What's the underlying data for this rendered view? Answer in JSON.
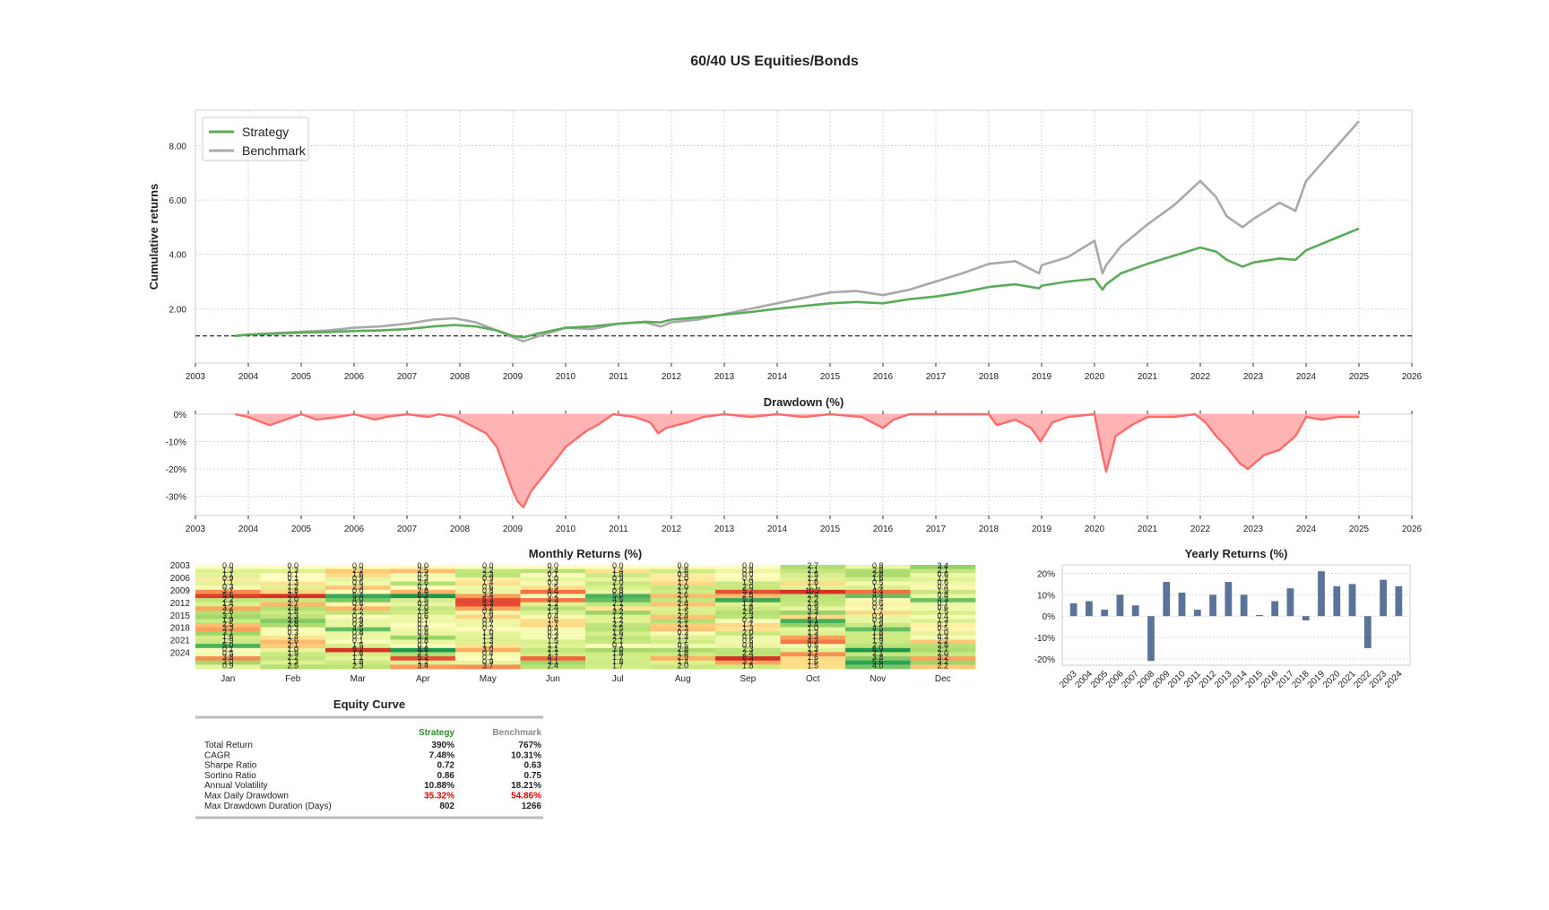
{
  "page_title": "60/40 US Equities/Bonds",
  "colors": {
    "strategy": "#5aab5a",
    "benchmark": "#a9a9a9",
    "drawdown": "#ff6b6b",
    "drawdown_fill": "#ffb3b3",
    "yearly_bar": "#5b7299",
    "red_text": "#e00000",
    "green_text": "#2e8b2e",
    "grid": "#cccccc"
  },
  "chart_data": [
    {
      "id": "cumulative",
      "type": "line",
      "title": "",
      "ylabel": "Cumulative returns",
      "xlabel": "",
      "xlim": [
        2003,
        2026
      ],
      "ylim": [
        0,
        9.3
      ],
      "x_ticks": [
        "2003",
        "2004",
        "2005",
        "2006",
        "2007",
        "2008",
        "2009",
        "2010",
        "2011",
        "2012",
        "2013",
        "2014",
        "2015",
        "2016",
        "2017",
        "2018",
        "2019",
        "2020",
        "2021",
        "2022",
        "2023",
        "2024",
        "2025",
        "2026"
      ],
      "y_ticks": [
        "2.00",
        "4.00",
        "6.00",
        "8.00"
      ],
      "y_tick_values": [
        2,
        4,
        6,
        8
      ],
      "reference_line": 1.0,
      "grid": true,
      "legend_position": "top-left",
      "series": [
        {
          "name": "Strategy",
          "x": [
            2003.75,
            2004.0,
            2004.5,
            2005.0,
            2005.5,
            2006.0,
            2006.5,
            2007.0,
            2007.5,
            2007.9,
            2008.3,
            2008.7,
            2009.0,
            2009.2,
            2009.5,
            2010.0,
            2010.5,
            2011.0,
            2011.5,
            2011.8,
            2012.0,
            2012.5,
            2013.0,
            2013.5,
            2014.0,
            2014.5,
            2015.0,
            2015.5,
            2016.0,
            2016.5,
            2017.0,
            2017.5,
            2018.0,
            2018.5,
            2018.95,
            2019.0,
            2019.5,
            2020.0,
            2020.15,
            2020.22,
            2020.5,
            2021.0,
            2021.5,
            2022.0,
            2022.3,
            2022.5,
            2022.8,
            2023.0,
            2023.5,
            2023.8,
            2024.0,
            2024.5,
            2025.0
          ],
          "y": [
            1.0,
            1.05,
            1.08,
            1.12,
            1.14,
            1.18,
            1.2,
            1.25,
            1.35,
            1.4,
            1.35,
            1.2,
            1.0,
            0.95,
            1.1,
            1.3,
            1.35,
            1.45,
            1.52,
            1.5,
            1.6,
            1.68,
            1.78,
            1.88,
            2.0,
            2.1,
            2.2,
            2.25,
            2.2,
            2.35,
            2.45,
            2.6,
            2.8,
            2.9,
            2.75,
            2.85,
            3.0,
            3.1,
            2.7,
            2.9,
            3.3,
            3.65,
            3.95,
            4.25,
            4.1,
            3.8,
            3.55,
            3.7,
            3.85,
            3.8,
            4.15,
            4.55,
            4.95
          ]
        },
        {
          "name": "Benchmark",
          "x": [
            2003.75,
            2004.0,
            2004.5,
            2005.0,
            2005.5,
            2006.0,
            2006.5,
            2007.0,
            2007.5,
            2007.9,
            2008.3,
            2008.7,
            2009.0,
            2009.2,
            2009.5,
            2010.0,
            2010.5,
            2011.0,
            2011.5,
            2011.8,
            2012.0,
            2012.5,
            2013.0,
            2013.5,
            2014.0,
            2014.5,
            2015.0,
            2015.5,
            2016.0,
            2016.5,
            2017.0,
            2017.5,
            2018.0,
            2018.5,
            2018.95,
            2019.0,
            2019.5,
            2020.0,
            2020.15,
            2020.22,
            2020.5,
            2021.0,
            2021.5,
            2022.0,
            2022.3,
            2022.5,
            2022.8,
            2023.0,
            2023.5,
            2023.8,
            2024.0,
            2024.5,
            2025.0
          ],
          "y": [
            1.0,
            1.05,
            1.1,
            1.15,
            1.2,
            1.3,
            1.35,
            1.45,
            1.6,
            1.65,
            1.5,
            1.2,
            0.95,
            0.8,
            1.0,
            1.3,
            1.25,
            1.45,
            1.5,
            1.35,
            1.5,
            1.6,
            1.8,
            2.0,
            2.2,
            2.4,
            2.6,
            2.65,
            2.5,
            2.7,
            3.0,
            3.3,
            3.65,
            3.75,
            3.3,
            3.6,
            3.9,
            4.5,
            3.3,
            3.6,
            4.3,
            5.1,
            5.8,
            6.7,
            6.1,
            5.4,
            5.0,
            5.3,
            5.9,
            5.6,
            6.7,
            7.8,
            8.9
          ]
        }
      ]
    },
    {
      "id": "drawdown",
      "type": "area",
      "title": "Drawdown (%)",
      "xlim": [
        2003,
        2026
      ],
      "ylim": [
        -37,
        0
      ],
      "x_ticks": [
        "2003",
        "2004",
        "2005",
        "2006",
        "2007",
        "2008",
        "2009",
        "2010",
        "2011",
        "2012",
        "2013",
        "2014",
        "2015",
        "2016",
        "2017",
        "2018",
        "2019",
        "2020",
        "2021",
        "2022",
        "2023",
        "2024",
        "2025",
        "2026"
      ],
      "y_ticks": [
        "0%",
        "-10%",
        "-20%",
        "-30%"
      ],
      "y_tick_values": [
        0,
        -10,
        -20,
        -30
      ],
      "grid": true,
      "x": [
        2003.75,
        2004.0,
        2004.4,
        2004.7,
        2005.0,
        2005.3,
        2005.7,
        2006.0,
        2006.4,
        2006.6,
        2007.0,
        2007.4,
        2007.6,
        2007.9,
        2008.2,
        2008.5,
        2008.7,
        2008.85,
        2009.0,
        2009.1,
        2009.2,
        2009.35,
        2009.6,
        2010.0,
        2010.4,
        2010.6,
        2010.9,
        2011.3,
        2011.6,
        2011.75,
        2011.9,
        2012.3,
        2012.6,
        2013.0,
        2013.5,
        2014.0,
        2014.5,
        2015.0,
        2015.6,
        2016.0,
        2016.2,
        2016.5,
        2017.0,
        2017.5,
        2018.0,
        2018.15,
        2018.5,
        2018.8,
        2018.98,
        2019.2,
        2019.5,
        2020.0,
        2020.15,
        2020.22,
        2020.4,
        2020.7,
        2021.0,
        2021.5,
        2021.9,
        2022.1,
        2022.3,
        2022.5,
        2022.75,
        2022.9,
        2023.2,
        2023.5,
        2023.8,
        2024.0,
        2024.3,
        2024.6,
        2025.0
      ],
      "y": [
        0,
        -1,
        -4,
        -2,
        0,
        -2,
        -1,
        0,
        -2,
        -1,
        0,
        -1,
        0,
        -1,
        -4,
        -7,
        -12,
        -20,
        -28,
        -32,
        -34,
        -28,
        -22,
        -12,
        -6,
        -4,
        0,
        -1,
        -3,
        -7,
        -5,
        -3,
        -1,
        0,
        -1,
        0,
        -1,
        0,
        -1,
        -5,
        -2,
        0,
        0,
        0,
        0,
        -4,
        -2,
        -5,
        -10,
        -3,
        -1,
        0,
        -15,
        -21,
        -8,
        -4,
        -1,
        -1,
        0,
        -3,
        -8,
        -12,
        -18,
        -20,
        -15,
        -13,
        -8,
        -1,
        -2,
        -1,
        -1
      ]
    },
    {
      "id": "monthly",
      "type": "heatmap",
      "title": "Monthly Returns (%)",
      "x_labels": [
        "Jan",
        "Feb",
        "Mar",
        "Apr",
        "May",
        "Jun",
        "Jul",
        "Aug",
        "Sep",
        "Oct",
        "Nov",
        "Dec"
      ],
      "y_labels": [
        "2003",
        "2006",
        "2009",
        "2012",
        "2015",
        "2018",
        "2021",
        "2024"
      ],
      "rows": [
        [
          0.0,
          0.0,
          0.0,
          0.0,
          0.0,
          0.0,
          0.0,
          0.0,
          0.0,
          2.7,
          0.8,
          3.4
        ],
        [
          1.3,
          1.3,
          2.2,
          2.5,
          2.2,
          2.4,
          1.4,
          1.8,
          0.8,
          2.1,
          2.8,
          2.1
        ],
        [
          1.1,
          0.1,
          1.6,
          0.4,
          2.3,
          0.1,
          1.8,
          0.9,
          0.0,
          1.5,
          2.8,
          0.6
        ],
        [
          0.9,
          0.1,
          0.9,
          0.3,
          0.9,
          1.0,
          0.9,
          1.0,
          0.4,
          1.2,
          1.6,
          1.2
        ],
        [
          1.1,
          1.3,
          0.6,
          2.6,
          1.4,
          0.3,
          2.0,
          1.7,
          1.9,
          1.6,
          0.5,
          0.6
        ],
        [
          0.3,
          1.2,
          2.3,
          0.1,
          0.6,
          1.5,
          1.4,
          2.0,
          2.0,
          1.1,
          1.4,
          0.4
        ],
        [
          3.7,
          1.8,
          0.0,
          2.8,
          0.8,
          4.4,
          0.8,
          1.7,
          5.2,
          10.7,
          4.4,
          1.9
        ],
        [
          5.6,
          7.1,
          5.4,
          6.3,
          3.4,
          0.2,
          5.0,
          2.6,
          2.6,
          2.4,
          4.4,
          0.8
        ],
        [
          2.2,
          2.0,
          4.0,
          1.5,
          5.3,
          4.3,
          4.5,
          2.1,
          5.3,
          2.2,
          0.4,
          4.3
        ],
        [
          1.4,
          2.7,
          0.6,
          0.9,
          5.3,
          1.2,
          2.1,
          2.4,
          1.2,
          1.9,
          0.6,
          0.7
        ],
        [
          3.2,
          2.6,
          2.7,
          2.0,
          3.2,
          2.4,
          1.2,
          1.3,
          1.8,
          0.9,
          0.4,
          0.6
        ],
        [
          2.6,
          1.8,
          2.2,
          1.8,
          0.6,
          1.3,
          3.2,
          1.5,
          2.6,
          3.3,
          1.7,
          1.5
        ],
        [
          3.1,
          2.3,
          0.2,
          0.6,
          1.9,
          0.4,
          1.2,
          2.4,
          2.3,
          1.7,
          0.9,
          0.4
        ],
        [
          1.9,
          3.8,
          0.9,
          0.7,
          0.6,
          1.6,
          1.2,
          2.5,
          0.2,
          5.1,
          0.9,
          1.3
        ],
        [
          2.5,
          2.8,
          0.8,
          0.1,
          0.7,
          1.7,
          2.2,
          2.1,
          1.7,
          3.4,
          1.9,
          0.7
        ],
        [
          3.3,
          0.3,
          4.5,
          0.6,
          0.2,
          0.4,
          2.5,
          2.3,
          1.3,
          1.0,
          4.5,
          0.5
        ],
        [
          3.1,
          0.3,
          0.8,
          0.8,
          1.0,
          0.3,
          1.6,
          0.3,
          2.0,
          1.3,
          1.8,
          1.0
        ],
        [
          1.6,
          1.4,
          0.7,
          3.2,
          1.3,
          0.3,
          2.2,
          1.3,
          0.6,
          3.3,
          1.8,
          0.3
        ],
        [
          1.9,
          2.6,
          0.1,
          0.8,
          1.3,
          1.5,
          2.1,
          1.7,
          0.6,
          4.3,
          1.9,
          2.2
        ],
        [
          5.0,
          2.1,
          1.5,
          0.1,
          1.3,
          1.2,
          0.1,
          0.5,
          0.8,
          0.5,
          2.4,
          2.5
        ],
        [
          0.1,
          1.0,
          9.2,
          8.6,
          3.0,
          2.1,
          3.0,
          2.8,
          2.3,
          1.3,
          6.9,
          2.7
        ],
        [
          0.5,
          1.9,
          1.6,
          2.7,
          0.4,
          1.7,
          1.8,
          1.8,
          2.4,
          3.7,
          2.1,
          2.0
        ],
        [
          3.8,
          2.2,
          1.1,
          5.2,
          0.1,
          4.7,
          1.7,
          2.9,
          6.3,
          1.6,
          3.8,
          3.2
        ],
        [
          3.0,
          1.3,
          1.8,
          1.2,
          0.9,
          3.1,
          1.8,
          1.4,
          3.2,
          1.6,
          5.6,
          3.2
        ],
        [
          0.9,
          2.5,
          2.3,
          3.4,
          3.7,
          2.4,
          1.7,
          2.0,
          1.8,
          1.5,
          4.0,
          2.2
        ]
      ]
    },
    {
      "id": "yearly",
      "type": "bar",
      "title": "Yearly Returns (%)",
      "categories": [
        "2003",
        "2004",
        "2005",
        "2006",
        "2007",
        "2008",
        "2009",
        "2010",
        "2011",
        "2012",
        "2013",
        "2014",
        "2015",
        "2016",
        "2017",
        "2018",
        "2019",
        "2020",
        "2021",
        "2022",
        "2023",
        "2024"
      ],
      "values": [
        6,
        7,
        3,
        10,
        5,
        -21,
        16,
        11,
        3,
        10,
        16,
        10,
        0.5,
        7,
        13,
        -2,
        21,
        14,
        15,
        -15,
        17,
        14
      ],
      "ylim": [
        -23,
        24
      ],
      "y_ticks": [
        "20%",
        "10%",
        "0%",
        "-10%",
        "-20%"
      ],
      "y_tick_values": [
        20,
        10,
        0,
        -10,
        -20
      ],
      "grid": true
    },
    {
      "id": "equity_table",
      "type": "table",
      "title": "Equity Curve",
      "columns": [
        "",
        "Strategy",
        "Benchmark"
      ],
      "rows": [
        {
          "label": "Total Return",
          "strategy": "390%",
          "benchmark": "767%",
          "highlight": false
        },
        {
          "label": "CAGR",
          "strategy": "7.48%",
          "benchmark": "10.31%",
          "highlight": false
        },
        {
          "label": "Sharpe Ratio",
          "strategy": "0.72",
          "benchmark": "0.63",
          "highlight": false
        },
        {
          "label": "Sortino Ratio",
          "strategy": "0.86",
          "benchmark": "0.75",
          "highlight": false
        },
        {
          "label": "Annual Volatility",
          "strategy": "10.88%",
          "benchmark": "18.21%",
          "highlight": false
        },
        {
          "label": "Max Daily Drawdown",
          "strategy": "35.32%",
          "benchmark": "54.86%",
          "highlight": true
        },
        {
          "label": "Max Drawdown Duration (Days)",
          "strategy": "802",
          "benchmark": "1266",
          "highlight": false
        }
      ]
    }
  ]
}
